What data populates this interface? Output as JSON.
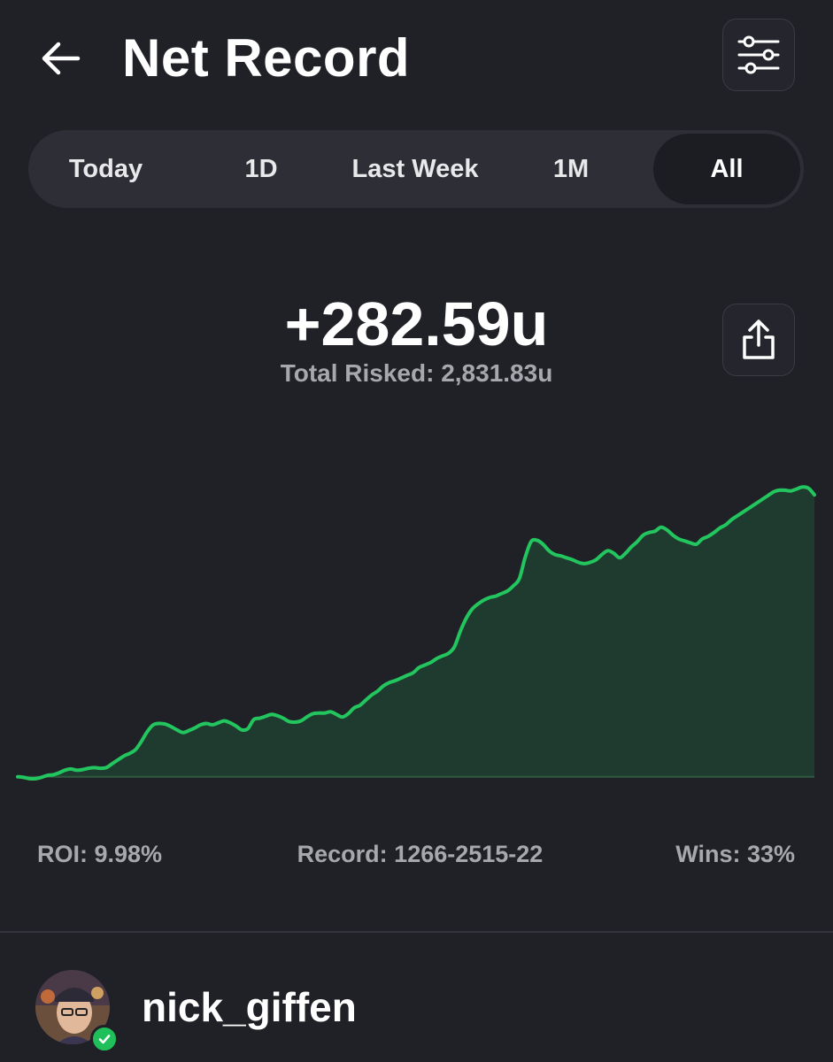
{
  "header": {
    "title": "Net Record",
    "back_icon": "arrow-left-icon",
    "filter_icon": "sliders-icon"
  },
  "tabs": [
    {
      "label": "Today",
      "active": false
    },
    {
      "label": "1D",
      "active": false
    },
    {
      "label": "Last Week",
      "active": false
    },
    {
      "label": "1M",
      "active": false
    },
    {
      "label": "All",
      "active": true
    }
  ],
  "summary": {
    "net": "+282.59u",
    "total_risked": "Total Risked: 2,831.83u",
    "share_icon": "share-icon"
  },
  "chart_data": {
    "type": "area",
    "line_color": "#22c55e",
    "fill_color": "#1f3a2e",
    "grid": false,
    "values": [
      0,
      -1,
      -3,
      -3,
      -1,
      2,
      3,
      6,
      10,
      12,
      10,
      11,
      13,
      14,
      13,
      14,
      20,
      26,
      32,
      36,
      42,
      55,
      70,
      80,
      82,
      81,
      77,
      72,
      68,
      71,
      75,
      80,
      82,
      80,
      83,
      86,
      83,
      78,
      72,
      74,
      88,
      90,
      93,
      96,
      94,
      90,
      85,
      84,
      86,
      92,
      97,
      98,
      98,
      100,
      96,
      92,
      97,
      106,
      110,
      118,
      126,
      132,
      140,
      145,
      148,
      152,
      156,
      160,
      168,
      172,
      176,
      182,
      186,
      190,
      200,
      224,
      244,
      258,
      266,
      272,
      276,
      278,
      282,
      286,
      294,
      305,
      338,
      362,
      364,
      358,
      348,
      342,
      340,
      337,
      334,
      330,
      328,
      330,
      334,
      342,
      348,
      344,
      337,
      344,
      354,
      362,
      372,
      376,
      378,
      384,
      380,
      372,
      366,
      363,
      360,
      358,
      366,
      370,
      376,
      383,
      388,
      396,
      402,
      408,
      414,
      420,
      426,
      432,
      438,
      441,
      441,
      440,
      443,
      446,
      444,
      434
    ],
    "ylim": [
      -10,
      460
    ]
  },
  "stats": {
    "roi": "ROI: 9.98%",
    "record": "Record: 1266-2515-22",
    "wins": "Wins: 33%"
  },
  "profile": {
    "username": "nick_giffen",
    "verified_icon": "check-badge-icon",
    "accent": "#1fbf5a"
  }
}
